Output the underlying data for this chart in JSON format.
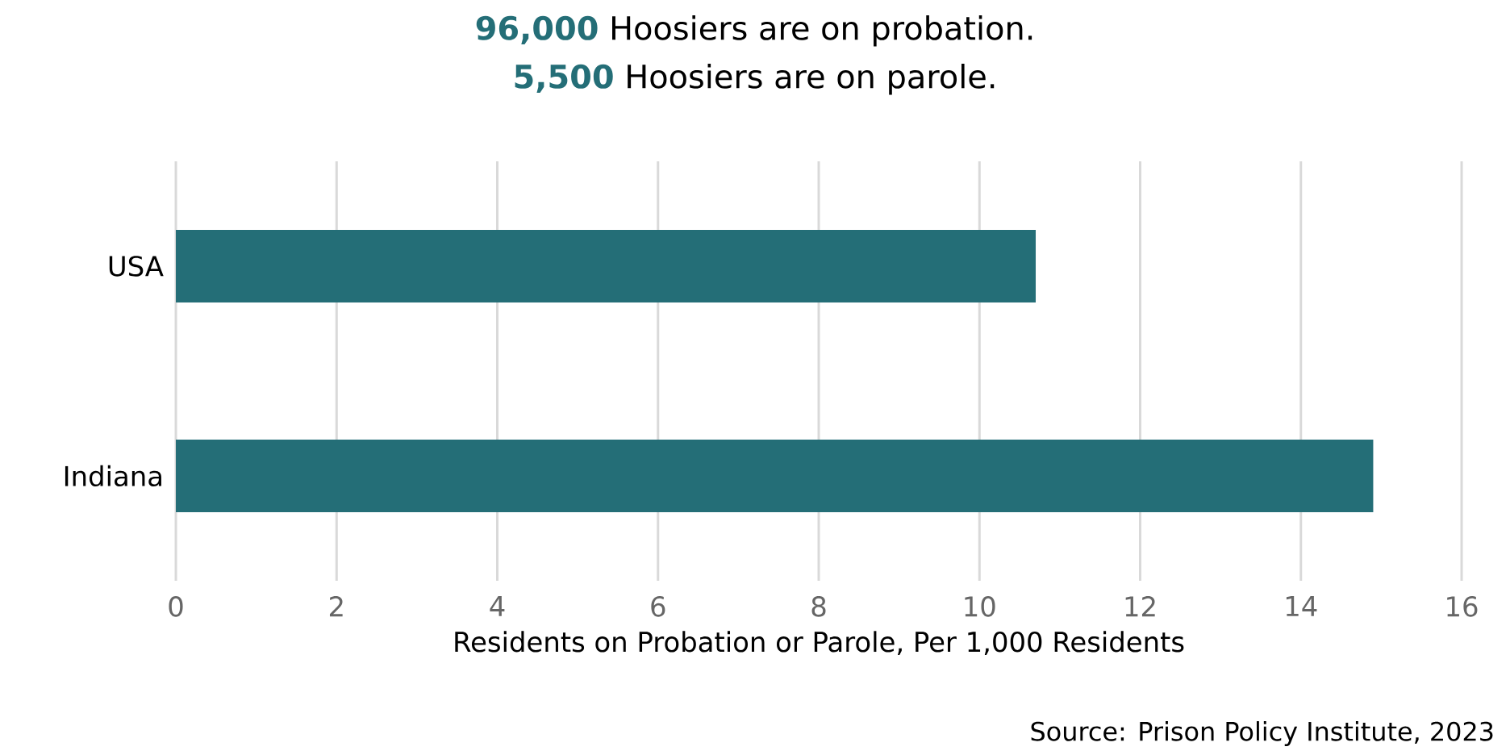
{
  "chart_data": {
    "type": "bar",
    "orientation": "horizontal",
    "title": "**96,000** Hoosiers are on probation.",
    "subtitle": "**5,500** Hoosiers are on parole.",
    "categories": [
      "USA",
      "Indiana"
    ],
    "values": [
      10.7,
      14.9
    ],
    "color": "#246e77",
    "xlabel": "Residents on Probation or Parole, Per 1,000 Residents",
    "xlim": [
      0,
      16
    ],
    "xticks": [
      0,
      2,
      4,
      6,
      8,
      10,
      12,
      14,
      16
    ],
    "grid": "x",
    "annotations": [
      "Source: Prison Policy Institute, 2023"
    ]
  }
}
